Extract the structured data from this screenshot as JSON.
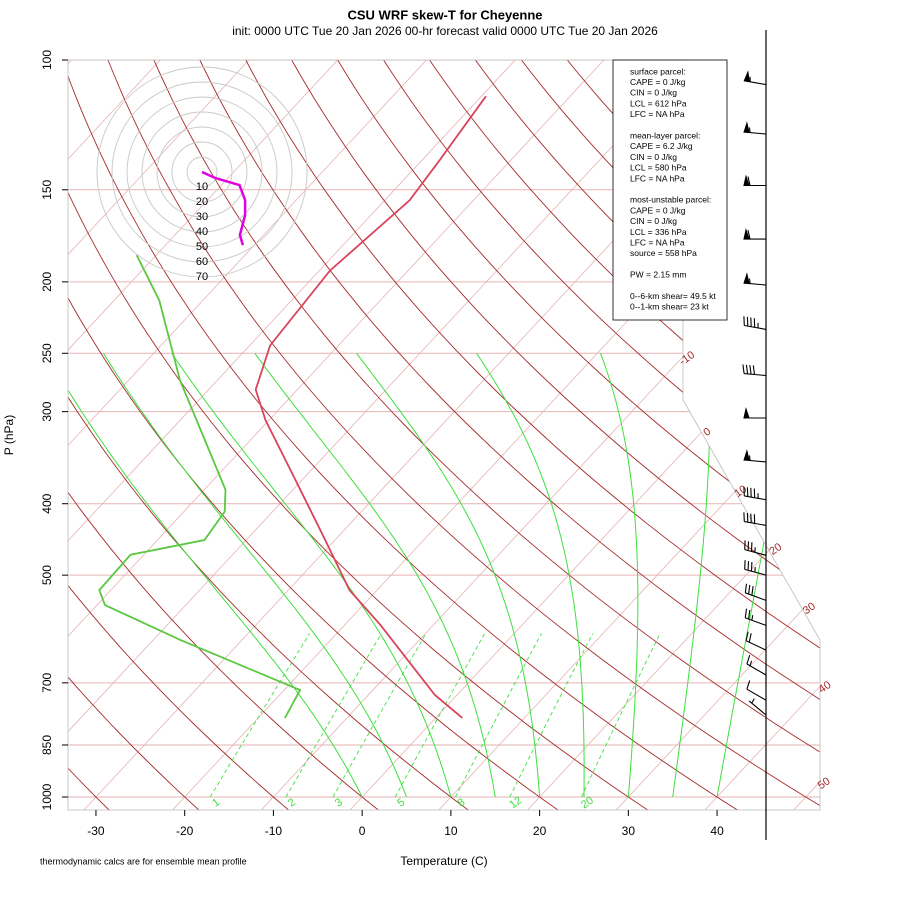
{
  "chart_data": {
    "type": "skewt",
    "title": "CSU WRF skew-T for Cheyenne",
    "subtitle": "init: 0000 UTC Tue 20 Jan 2026    00-hr forecast valid 0000 UTC Tue 20 Jan 2026",
    "xlabel": "Temperature (C)",
    "ylabel": "P (hPa)",
    "note": "thermodynamic calcs are for ensemble mean profile",
    "xlim": [
      -33.15,
      51.6
    ],
    "ylim": [
      1000,
      100
    ],
    "log_y": true,
    "xticks": [
      -30,
      -20,
      -10,
      0,
      10,
      20,
      30,
      40
    ],
    "yticks": [
      100,
      150,
      200,
      250,
      300,
      400,
      500,
      700,
      850,
      1000
    ],
    "isotherm_labels": [
      -10,
      0,
      10,
      20,
      30,
      40,
      50
    ],
    "mixing_ratio_labels": [
      1,
      2,
      3,
      5,
      8,
      12,
      20
    ],
    "profiles": [
      {
        "color": "#d9435a",
        "pressure": [
          781,
          727,
          584,
          524,
          448,
          371,
          308,
          280,
          244,
          193,
          155,
          137,
          112
        ],
        "values": [
          3.0,
          -2.5,
          -16.0,
          -23.1,
          -31.1,
          -40.8,
          -50.4,
          -54.7,
          -57.7,
          -58.8,
          -57.2,
          -58.0,
          -59.5
        ]
      },
      {
        "color": "#5ac840",
        "pressure": [
          781,
          716,
          612,
          549,
          524,
          469,
          448,
          410,
          383,
          272,
          212,
          184
        ],
        "values": [
          -17.0,
          -18.2,
          -37.0,
          -49.1,
          -51.3,
          -51.5,
          -44.7,
          -45.4,
          -47.6,
          -64.2,
          -74.9,
          -82.2
        ]
      }
    ],
    "barbs": {
      "pressure": [
        108,
        126,
        148,
        175,
        202,
        232,
        268,
        306,
        351,
        395,
        428,
        470,
        500,
        541,
        585,
        632,
        683,
        739,
        774
      ],
      "speed": [
        55,
        55,
        60,
        60,
        55,
        45,
        40,
        50,
        55,
        45,
        40,
        35,
        35,
        30,
        25,
        20,
        15,
        10,
        5
      ],
      "direction": [
        280,
        275,
        270,
        270,
        275,
        280,
        275,
        270,
        275,
        280,
        280,
        285,
        285,
        290,
        290,
        295,
        300,
        300,
        310
      ]
    },
    "hodograph": {
      "rings": [
        10,
        20,
        30,
        40,
        50,
        60,
        70
      ],
      "color": "#e000e0",
      "u": [
        0,
        8.7,
        25,
        28.7,
        28.7,
        25.3,
        27.3
      ],
      "v": [
        0,
        -4,
        -8.7,
        -18.7,
        -28.7,
        -42,
        -48.7
      ]
    },
    "info": [
      [
        "surface parcel:",
        "CAPE = 0 J/kg",
        "CIN = 0 J/kg",
        "LCL = 612 hPa",
        "LFC = NA hPa"
      ],
      [
        "mean-layer parcel:",
        "CAPE = 6.2 J/kg",
        "CIN = 0 J/kg",
        "LCL = 580 hPa",
        "LFC = NA hPa"
      ],
      [
        "most-unstable parcel:",
        "CAPE = 0 J/kg",
        "CIN = 0 J/kg",
        "LCL = 336 hPa",
        "LFC = NA hPa",
        "source = 558 hPa"
      ],
      [
        "PW =  2.15 mm"
      ],
      [
        "0--6-km shear= 49.5 kt",
        "0--1-km shear= 23 kt"
      ]
    ]
  }
}
